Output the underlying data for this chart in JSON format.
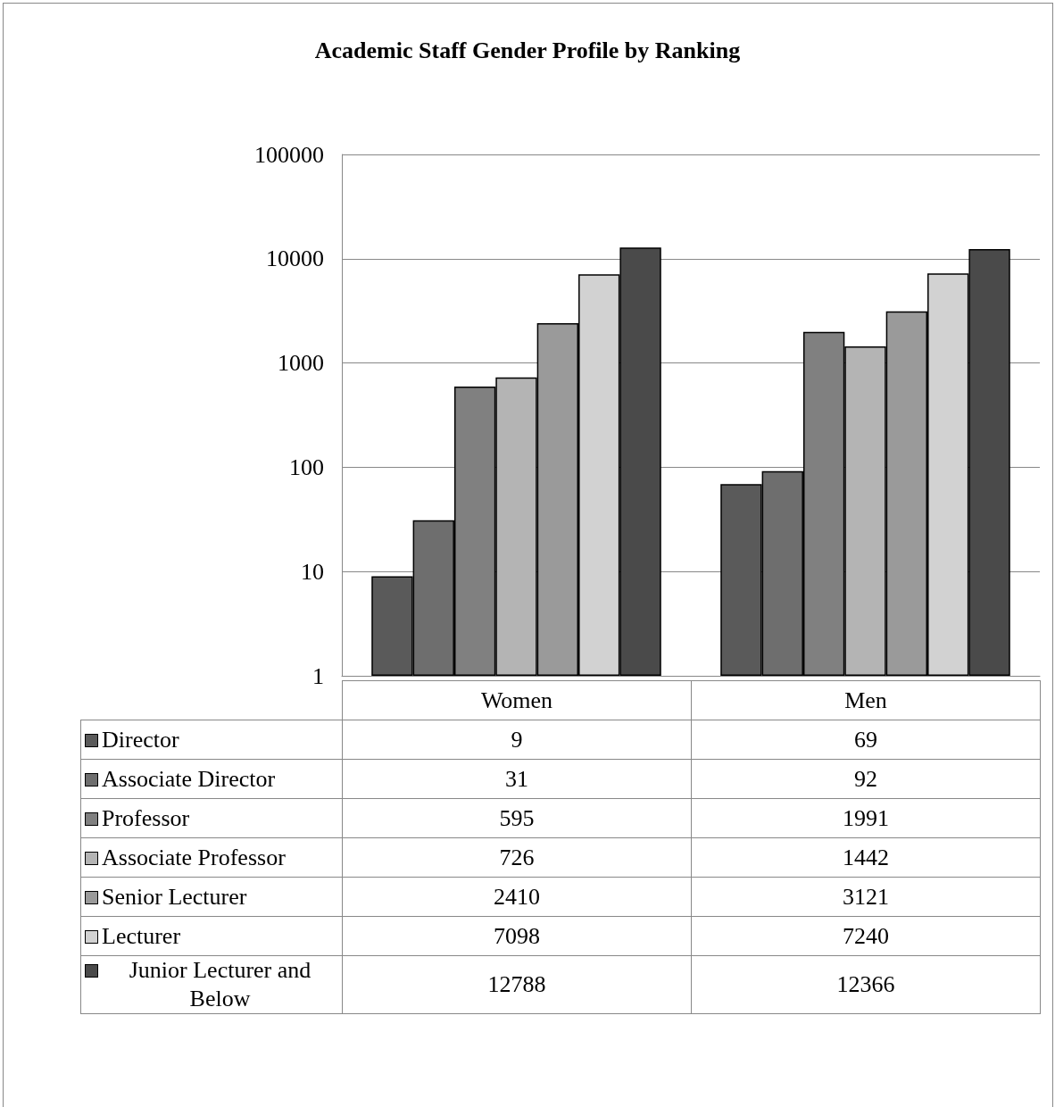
{
  "chart_data": {
    "type": "bar",
    "title": "Academic Staff Gender Profile by Ranking",
    "categories": [
      "Women",
      "Men"
    ],
    "series": [
      {
        "name": "Director",
        "color": "#5a5a5a",
        "values": [
          9,
          69
        ]
      },
      {
        "name": "Associate Director",
        "color": "#6e6e6e",
        "values": [
          31,
          92
        ]
      },
      {
        "name": "Professor",
        "color": "#808080",
        "values": [
          595,
          1991
        ]
      },
      {
        "name": "Associate Professor",
        "color": "#b4b4b4",
        "values": [
          726,
          1442
        ]
      },
      {
        "name": "Senior Lecturer",
        "color": "#9a9a9a",
        "values": [
          2410,
          3121
        ]
      },
      {
        "name": "Lecturer",
        "color": "#d2d2d2",
        "values": [
          7098,
          7240
        ]
      },
      {
        "name": "Junior Lecturer and Below",
        "color": "#4a4a4a",
        "values": [
          12788,
          12366
        ]
      }
    ],
    "log": true,
    "ylim": [
      1,
      100000
    ],
    "yticks": [
      1,
      10,
      100,
      1000,
      10000,
      100000
    ],
    "grid": "y",
    "legend": "bottom left",
    "data_labels": true
  }
}
